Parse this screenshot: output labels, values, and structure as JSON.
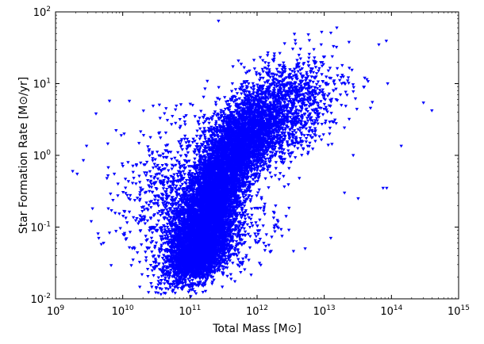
{
  "chart_data": {
    "type": "scatter",
    "xlabel": "Total Mass [M⊙]",
    "ylabel": "Star Formation Rate [M⊙/yr]",
    "xscale": "log",
    "yscale": "log",
    "xlim": [
      1000000000.0,
      1000000000000000.0
    ],
    "ylim": [
      0.01,
      100
    ],
    "x_ticks": [
      {
        "base": "10",
        "exp": "9"
      },
      {
        "base": "10",
        "exp": "10"
      },
      {
        "base": "10",
        "exp": "11"
      },
      {
        "base": "10",
        "exp": "12"
      },
      {
        "base": "10",
        "exp": "13"
      },
      {
        "base": "10",
        "exp": "14"
      },
      {
        "base": "10",
        "exp": "15"
      }
    ],
    "y_ticks": [
      {
        "base": "10",
        "exp": "-2"
      },
      {
        "base": "10",
        "exp": "-1"
      },
      {
        "base": "10",
        "exp": "0"
      },
      {
        "base": "10",
        "exp": "1"
      },
      {
        "base": "10",
        "exp": "2"
      }
    ],
    "marker": "triangle-down",
    "marker_color": "#0000ff",
    "grid": false,
    "series": [
      {
        "points": [
          [
            1800000000.0,
            0.6
          ],
          [
            2100000000.0,
            0.55
          ],
          [
            2600000000.0,
            0.85
          ],
          [
            2900000000.0,
            1.35
          ],
          [
            3400000000.0,
            0.12
          ],
          [
            4000000000.0,
            3.8
          ],
          [
            4400000000.0,
            0.07
          ],
          [
            5200000000.0,
            0.06
          ],
          [
            6000000000.0,
            1.45
          ],
          [
            6800000000.0,
            0.17
          ],
          [
            7500000000.0,
            0.55
          ],
          [
            8500000000.0,
            0.4
          ],
          [
            9500000000.0,
            1.9
          ],
          [
            10500000000.0,
            2.0
          ],
          [
            12000000000.0,
            0.8
          ],
          [
            15000000000.0,
            0.05
          ],
          [
            18000000000.0,
            0.28
          ],
          [
            23000000000.0,
            0.18
          ],
          [
            28000000000.0,
            0.1
          ],
          [
            36000000000.0,
            3.3
          ],
          [
            44000000000.0,
            0.5
          ],
          [
            52000000000.0,
            0.3
          ],
          [
            58000000000.0,
            0.15
          ],
          [
            66000000000.0,
            0.03
          ],
          [
            82000000000.0,
            0.22
          ],
          [
            88000000000.0,
            3.6
          ],
          [
            110000000000.0,
            5.0
          ],
          [
            160000000000.0,
            6.5
          ],
          [
            250000000000.0,
            3.6
          ],
          [
            600000000000.0,
            0.03
          ],
          [
            750000000000.0,
            10.0
          ],
          [
            1000000000000.0,
            3.0
          ],
          [
            1400000000000.0,
            16.0
          ],
          [
            1800000000000.0,
            24.0
          ],
          [
            2200000000000.0,
            18.0
          ],
          [
            2500000000000.0,
            0.8
          ],
          [
            3200000000000.0,
            10.0
          ],
          [
            3700000000000.0,
            40.0
          ],
          [
            4200000000000.0,
            25.0
          ],
          [
            5200000000000.0,
            0.05
          ],
          [
            6000000000000.0,
            40.0
          ],
          [
            7000000000000.0,
            30.0
          ],
          [
            9000000000000.0,
            35.0
          ],
          [
            10500000000000.0,
            10.0
          ],
          [
            12000000000000.0,
            2.0
          ],
          [
            12500000000000.0,
            0.07
          ],
          [
            15000000000000.0,
            6.0
          ],
          [
            18000000000000.0,
            5.0
          ],
          [
            20000000000000.0,
            0.3
          ],
          [
            27000000000000.0,
            1.0
          ],
          [
            32000000000000.0,
            0.25
          ],
          [
            40000000000000.0,
            12.0
          ],
          [
            52000000000000.0,
            5.5
          ],
          [
            65000000000000.0,
            35.0
          ],
          [
            75000000000000.0,
            0.35
          ],
          [
            88000000000000.0,
            10.0
          ],
          [
            140000000000000.0,
            1.35
          ],
          [
            300000000000000.0,
            5.4
          ],
          [
            400000000000000.0,
            4.2
          ],
          [
            85000000000000.0,
            0.35
          ]
        ]
      }
    ],
    "clusters": [
      {
        "cx": 130000000000.0,
        "cy": 0.04,
        "sx": 0.22,
        "sy": 0.17,
        "n": 2000
      },
      {
        "cx": 150000000000.0,
        "cy": 0.1,
        "sx": 0.25,
        "sy": 0.27,
        "n": 2600
      },
      {
        "cx": 250000000000.0,
        "cy": 0.35,
        "sx": 0.22,
        "sy": 0.27,
        "n": 2300
      },
      {
        "cx": 550000000000.0,
        "cy": 1.4,
        "sx": 0.26,
        "sy": 0.27,
        "n": 2100
      },
      {
        "cx": 1400000000000.0,
        "cy": 3.6,
        "sx": 0.34,
        "sy": 0.3,
        "n": 1300
      },
      {
        "cx": 4000000000000.0,
        "cy": 5.0,
        "sx": 0.4,
        "sy": 0.36,
        "n": 500
      },
      {
        "cx": 50000000000.0,
        "cy": 0.3,
        "sx": 0.38,
        "sy": 0.5,
        "n": 600
      },
      {
        "cx": 300000000000.0,
        "cy": 0.06,
        "sx": 0.45,
        "sy": 0.28,
        "n": 300
      }
    ]
  }
}
